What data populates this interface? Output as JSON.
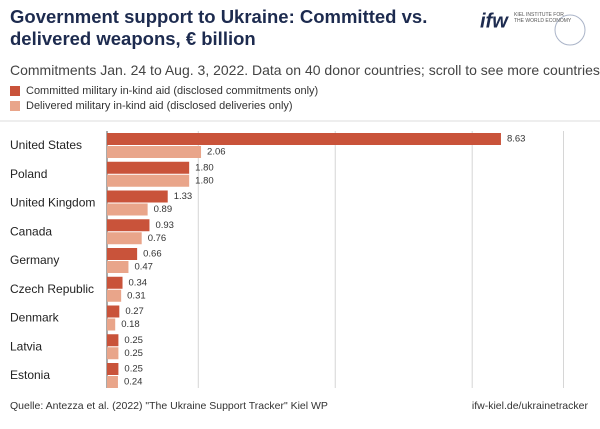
{
  "header": {
    "title": "Government support to Ukraine: Committed vs. delivered weapons, € billion",
    "logo": "ifw",
    "logo_sub": "KIEL INSTITUTE FOR THE WORLD ECONOMY",
    "subtitle": "Commitments Jan. 24 to Aug. 3, 2022. Data on 40 donor countries; scroll to see more countries"
  },
  "chart_data": {
    "type": "hbar",
    "categories": [
      "United States",
      "Poland",
      "United Kingdom",
      "Canada",
      "Germany",
      "Czech Republic",
      "Denmark",
      "Latvia",
      "Estonia"
    ],
    "series": [
      {
        "name": "Committed military in-kind aid (disclosed commitments only)",
        "color": "#c9533a",
        "values": [
          8.63,
          1.8,
          1.33,
          0.93,
          0.66,
          0.34,
          0.27,
          0.25,
          0.25
        ],
        "value_labels": [
          "8.63",
          "1.80",
          "1.33",
          "0.93",
          "0.66",
          "0.34",
          "0.27",
          "0.25",
          "0.25"
        ]
      },
      {
        "name": "Delivered military in-kind aid (disclosed deliveries only)",
        "color": "#e9a58a",
        "values": [
          2.06,
          1.8,
          0.89,
          0.76,
          0.47,
          0.31,
          0.18,
          0.25,
          0.24
        ],
        "value_labels": [
          "2.06",
          "1.80",
          "0.89",
          "0.76",
          "0.47",
          "0.31",
          "0.18",
          "0.25",
          "0.24"
        ]
      }
    ],
    "xlim": [
      0,
      10
    ],
    "xticks": [
      2,
      5,
      8,
      10
    ],
    "grid": true
  },
  "footer": {
    "source": "Quelle: Antezza et al. (2022) \"The Ukraine Support Tracker\" Kiel WP",
    "link": "ifw-kiel.de/ukrainetracker"
  }
}
